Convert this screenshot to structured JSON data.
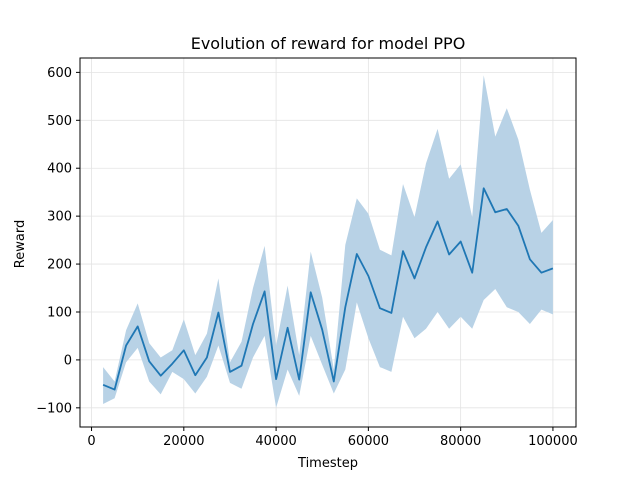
{
  "chart_data": {
    "type": "line",
    "title": "Evolution of reward for model PPO",
    "xlabel": "Timestep",
    "ylabel": "Reward",
    "xlim": [
      -2500,
      105000
    ],
    "ylim": [
      -140,
      630
    ],
    "xticks": [
      0,
      20000,
      40000,
      60000,
      80000,
      100000
    ],
    "xtick_labels": [
      "0",
      "20000",
      "40000",
      "60000",
      "80000",
      "100000"
    ],
    "yticks": [
      -100,
      0,
      100,
      200,
      300,
      400,
      500,
      600
    ],
    "ytick_labels": [
      "−100",
      "0",
      "100",
      "200",
      "300",
      "400",
      "500",
      "600"
    ],
    "grid": true,
    "colors": {
      "line": "#1f77b4",
      "band": "#b8d2e6"
    },
    "series": [
      {
        "x": [
          2500,
          5000,
          7500,
          10000,
          12500,
          15000,
          17500,
          20000,
          22500,
          25000,
          27500,
          30000,
          32500,
          35000,
          37500,
          40000,
          42500,
          45000,
          47500,
          50000,
          52500,
          55000,
          57500,
          60000,
          62500,
          65000,
          67500,
          70000,
          72500,
          75000,
          77500,
          80000,
          82500,
          85000,
          87500,
          90000,
          92500,
          95000,
          97500,
          100000
        ],
        "mean": [
          -52,
          -62,
          30,
          70,
          -3,
          -33,
          -8,
          20,
          -32,
          5,
          99,
          -25,
          -12,
          75,
          143,
          -40,
          67,
          -41,
          141,
          63,
          -45,
          110,
          221,
          175,
          108,
          98,
          227,
          170,
          235,
          289,
          220,
          247,
          182,
          358,
          308,
          315,
          280,
          210,
          182,
          191
        ],
        "lower": [
          -92,
          -80,
          -5,
          25,
          -45,
          -72,
          -25,
          -40,
          -70,
          -35,
          30,
          -48,
          -60,
          5,
          50,
          -100,
          -20,
          -75,
          50,
          -10,
          -70,
          -20,
          120,
          45,
          -15,
          -25,
          90,
          45,
          65,
          100,
          65,
          90,
          65,
          125,
          148,
          110,
          100,
          75,
          105,
          95
        ],
        "upper": [
          -15,
          -45,
          62,
          118,
          35,
          5,
          20,
          85,
          10,
          55,
          170,
          -5,
          38,
          150,
          238,
          30,
          155,
          10,
          226,
          130,
          -20,
          240,
          337,
          305,
          230,
          218,
          367,
          298,
          410,
          482,
          378,
          408,
          298,
          594,
          466,
          525,
          460,
          355,
          265,
          292
        ]
      }
    ]
  }
}
